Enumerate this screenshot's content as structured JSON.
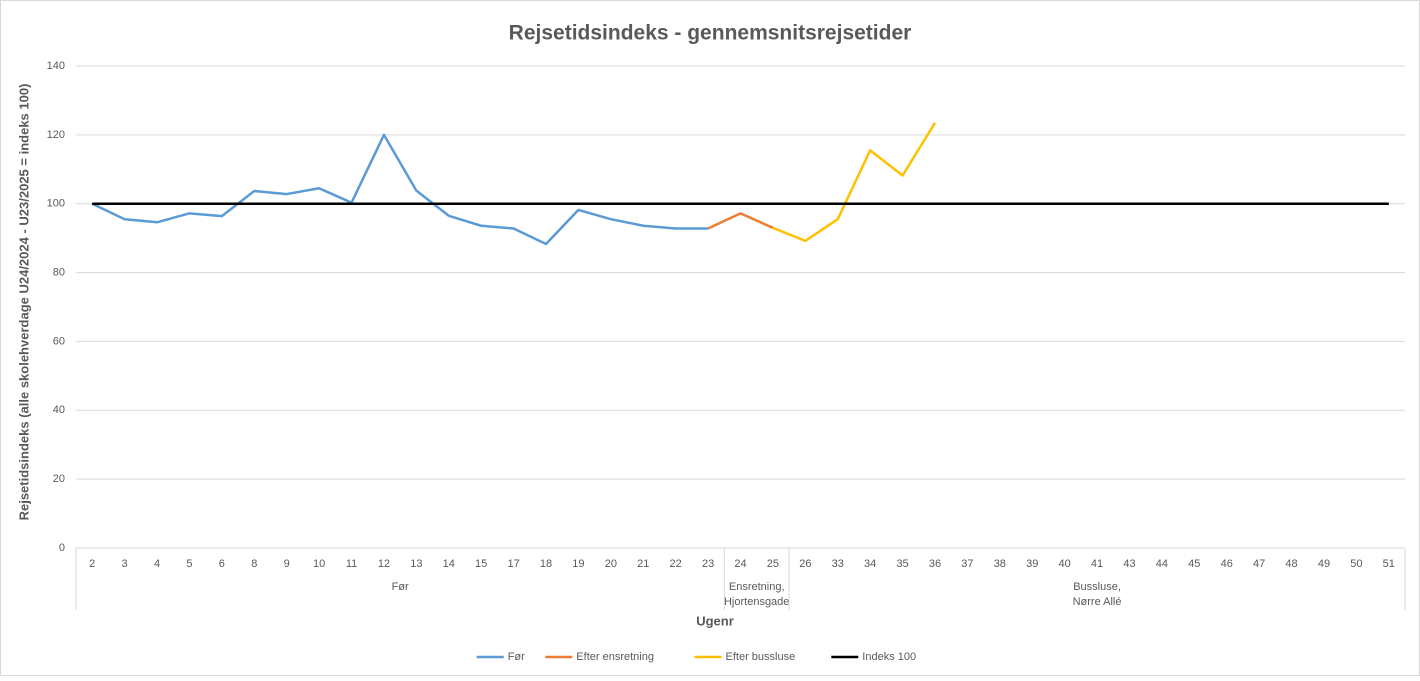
{
  "chart_data": {
    "type": "line",
    "title": "Rejsetidsindeks - gennemsnitsrejsetider",
    "ylabel": "Rejsetidsindeks (alle skolehverdage U24/2024 - U23/2025 = indeks 100)",
    "xlabel": "Ugenr",
    "groups": [
      {
        "label": [
          "Før"
        ],
        "categories": [
          "2",
          "3",
          "4",
          "5",
          "6",
          "8",
          "9",
          "10",
          "11",
          "12",
          "13",
          "14",
          "15",
          "17",
          "18",
          "19",
          "20",
          "21",
          "22",
          "23"
        ]
      },
      {
        "label": [
          "Ensretning,",
          "Hjortensgade"
        ],
        "categories": [
          "24",
          "25"
        ]
      },
      {
        "label": [
          "Bussluse,",
          "Nørre Allé"
        ],
        "categories": [
          "26",
          "33",
          "34",
          "35",
          "36",
          "37",
          "38",
          "39",
          "40",
          "41",
          "43",
          "44",
          "45",
          "46",
          "47",
          "48",
          "49",
          "50",
          "51"
        ]
      }
    ],
    "series": [
      {
        "name": "Før",
        "color": "#5b9bd5",
        "values": [
          100,
          95.5,
          94.6,
          97.2,
          96.4,
          103.7,
          102.8,
          104.5,
          100.3,
          120,
          103.8,
          96.5,
          93.6,
          92.8,
          88.3,
          98.2,
          95.5,
          93.6,
          92.8,
          92.8,
          null,
          null,
          null,
          null,
          null,
          null,
          null,
          null,
          null,
          null,
          null,
          null,
          null,
          null,
          null,
          null,
          null,
          null,
          null,
          null,
          null
        ]
      },
      {
        "name": "Efter ensretning",
        "color": "#ed7d31",
        "values": [
          null,
          null,
          null,
          null,
          null,
          null,
          null,
          null,
          null,
          null,
          null,
          null,
          null,
          null,
          null,
          null,
          null,
          null,
          null,
          92.8,
          97.2,
          93.0,
          null,
          null,
          null,
          null,
          null,
          null,
          null,
          null,
          null,
          null,
          null,
          null,
          null,
          null,
          null,
          null,
          null,
          null,
          null
        ]
      },
      {
        "name": "Efter bussluse",
        "color": "#ffc000",
        "values": [
          null,
          null,
          null,
          null,
          null,
          null,
          null,
          null,
          null,
          null,
          null,
          null,
          null,
          null,
          null,
          null,
          null,
          null,
          null,
          null,
          null,
          93.0,
          89.2,
          95.5,
          115.5,
          108.2,
          123.5,
          null,
          null,
          null,
          null,
          null,
          null,
          null,
          null,
          null,
          null,
          null,
          null,
          null,
          null
        ]
      },
      {
        "name": "Indeks 100",
        "color": "#000000",
        "values": [
          100,
          100,
          100,
          100,
          100,
          100,
          100,
          100,
          100,
          100,
          100,
          100,
          100,
          100,
          100,
          100,
          100,
          100,
          100,
          100,
          100,
          100,
          100,
          100,
          100,
          100,
          100,
          100,
          100,
          100,
          100,
          100,
          100,
          100,
          100,
          100,
          100,
          100,
          100,
          100,
          100
        ]
      }
    ],
    "ylim": [
      0,
      140
    ],
    "yticks": [
      0,
      20,
      40,
      60,
      80,
      100,
      120,
      140
    ],
    "grid": true,
    "legend": "bottom"
  }
}
